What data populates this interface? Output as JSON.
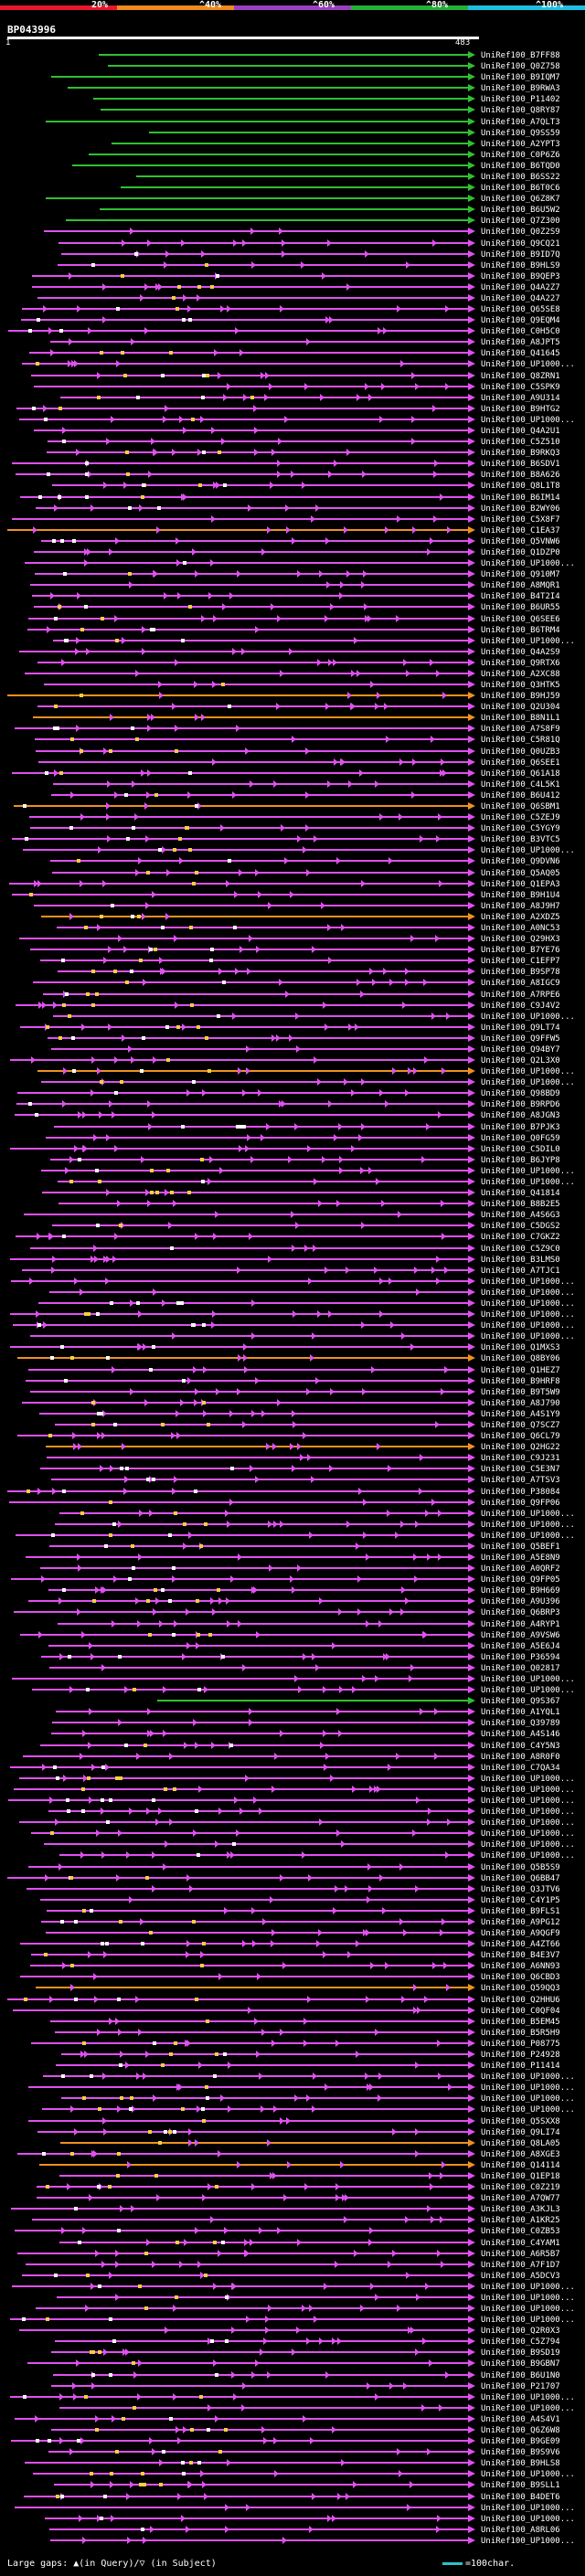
{
  "query": {
    "name": "BP043996",
    "start": "1",
    "end": "483"
  },
  "legend": {
    "ticks": [
      "20%",
      "^40%",
      "^60%",
      "^80%",
      "^100%"
    ],
    "colors": [
      "#e8172b",
      "#f08a1e",
      "#9b3fc0",
      "#23b038",
      "#1ec0e0"
    ]
  },
  "colors": {
    "magenta": "#e050f0",
    "green": "#30c030",
    "orange": "#f09020",
    "white": "#ffffff",
    "yellow": "#f0d040"
  },
  "hits": [
    {
      "label": "UniRef100_B7FF88",
      "color": "green"
    },
    {
      "label": "UniRef100_Q0Z758",
      "color": "green"
    },
    {
      "label": "UniRef100_B9IQM7",
      "color": "green"
    },
    {
      "label": "UniRef100_B9RWA3",
      "color": "green"
    },
    {
      "label": "UniRef100_P11402",
      "color": "green"
    },
    {
      "label": "UniRef100_Q8RY87",
      "color": "green"
    },
    {
      "label": "UniRef100_A7QLT3",
      "color": "green"
    },
    {
      "label": "UniRef100_Q9SS59",
      "color": "green"
    },
    {
      "label": "UniRef100_A2YPT3",
      "color": "green"
    },
    {
      "label": "UniRef100_C0P6Z6",
      "color": "green"
    },
    {
      "label": "UniRef100_B6TQD0",
      "color": "green"
    },
    {
      "label": "UniRef100_B6SS22",
      "color": "green"
    },
    {
      "label": "UniRef100_B6T0C6",
      "color": "green"
    },
    {
      "label": "UniRef100_Q6Z8K7",
      "color": "green"
    },
    {
      "label": "UniRef100_B6U5W2",
      "color": "green"
    },
    {
      "label": "UniRef100_Q7Z300",
      "color": "green"
    },
    {
      "label": "UniRef100_Q0Z2S9",
      "color": "magenta"
    },
    {
      "label": "UniRef100_Q9CQ21",
      "color": "magenta"
    },
    {
      "label": "UniRef100_B9ID7Q",
      "color": "magenta"
    },
    {
      "label": "UniRef100_B9HLS9",
      "color": "magenta"
    },
    {
      "label": "UniRef100_B9QEP3",
      "color": "magenta"
    },
    {
      "label": "UniRef100_Q4A2Z7",
      "color": "magenta"
    },
    {
      "label": "UniRef100_Q4A227",
      "color": "magenta"
    },
    {
      "label": "UniRef100_Q65SE8",
      "color": "magenta"
    },
    {
      "label": "UniRef100_Q9EQM4",
      "color": "magenta"
    },
    {
      "label": "UniRef100_C0H5C0",
      "color": "magenta"
    },
    {
      "label": "UniRef100_A8JPT5",
      "color": "magenta"
    },
    {
      "label": "UniRef100_Q41645",
      "color": "magenta"
    },
    {
      "label": "UniRef100_UP1000...",
      "color": "magenta"
    },
    {
      "label": "UniRef100_Q8ZRN1",
      "color": "magenta"
    },
    {
      "label": "UniRef100_C5SPK9",
      "color": "magenta"
    },
    {
      "label": "UniRef100_A9U314",
      "color": "magenta"
    },
    {
      "label": "UniRef100_B9HTG2",
      "color": "magenta"
    },
    {
      "label": "UniRef100_UP1000...",
      "color": "magenta"
    },
    {
      "label": "UniRef100_Q4A2U1",
      "color": "magenta"
    },
    {
      "label": "UniRef100_C5Z510",
      "color": "magenta"
    },
    {
      "label": "UniRef100_B9RKQ3",
      "color": "magenta"
    },
    {
      "label": "UniRef100_B6SDV1",
      "color": "magenta"
    },
    {
      "label": "UniRef100_B8A626",
      "color": "magenta"
    },
    {
      "label": "UniRef100_Q8L1T8",
      "color": "magenta"
    },
    {
      "label": "UniRef100_B6IM14",
      "color": "magenta"
    },
    {
      "label": "UniRef100_B2WY06",
      "color": "magenta"
    },
    {
      "label": "UniRef100_C5X8F7",
      "color": "magenta"
    },
    {
      "label": "UniRef100_C1EA37",
      "color": "orange"
    },
    {
      "label": "UniRef100_Q5VNW6",
      "color": "magenta"
    },
    {
      "label": "UniRef100_Q1DZP0",
      "color": "magenta"
    },
    {
      "label": "UniRef100_UP1000...",
      "color": "magenta"
    },
    {
      "label": "UniRef100_Q910M7",
      "color": "magenta"
    },
    {
      "label": "UniRef100_A8MQR1",
      "color": "magenta"
    },
    {
      "label": "UniRef100_B4T2I4",
      "color": "magenta"
    },
    {
      "label": "UniRef100_B6UR55",
      "color": "magenta"
    },
    {
      "label": "UniRef100_Q6SEE6",
      "color": "magenta"
    },
    {
      "label": "UniRef100_B6TRM4",
      "color": "magenta"
    },
    {
      "label": "UniRef100_UP1000...",
      "color": "magenta"
    },
    {
      "label": "UniRef100_Q4A2S9",
      "color": "magenta"
    },
    {
      "label": "UniRef100_Q9RTX6",
      "color": "magenta"
    },
    {
      "label": "UniRef100_A2XC88",
      "color": "magenta"
    },
    {
      "label": "UniRef100_Q3HTK5",
      "color": "magenta"
    },
    {
      "label": "UniRef100_B9HJ59",
      "color": "orange"
    },
    {
      "label": "UniRef100_Q2U304",
      "color": "magenta"
    },
    {
      "label": "UniRef100_B8N1L1",
      "color": "orange"
    },
    {
      "label": "UniRef100_A7S8F9",
      "color": "magenta"
    },
    {
      "label": "UniRef100_C5R81Q",
      "color": "magenta"
    },
    {
      "label": "UniRef100_Q0UZB3",
      "color": "magenta"
    },
    {
      "label": "UniRef100_Q6SEE1",
      "color": "magenta"
    },
    {
      "label": "UniRef100_Q61A18",
      "color": "magenta"
    },
    {
      "label": "UniRef100_C4L5K1",
      "color": "magenta"
    },
    {
      "label": "UniRef100_B6U412",
      "color": "magenta"
    },
    {
      "label": "UniRef100_Q6SBM1",
      "color": "orange"
    },
    {
      "label": "UniRef100_C5ZEJ9",
      "color": "magenta"
    },
    {
      "label": "UniRef100_C5YGY9",
      "color": "magenta"
    },
    {
      "label": "UniRef100_B3VTC5",
      "color": "magenta"
    },
    {
      "label": "UniRef100_UP1000...",
      "color": "magenta"
    },
    {
      "label": "UniRef100_Q9DVN6",
      "color": "magenta"
    },
    {
      "label": "UniRef100_Q5AQ05",
      "color": "magenta"
    },
    {
      "label": "UniRef100_Q1EPA3",
      "color": "magenta"
    },
    {
      "label": "UniRef100_B9H1U4",
      "color": "magenta"
    },
    {
      "label": "UniRef100_A8J9H7",
      "color": "magenta"
    },
    {
      "label": "UniRef100_A2XDZ5",
      "color": "orange"
    },
    {
      "label": "UniRef100_A0NC53",
      "color": "magenta"
    },
    {
      "label": "UniRef100_Q29HX3",
      "color": "magenta"
    },
    {
      "label": "UniRef100_B7YE76",
      "color": "magenta"
    },
    {
      "label": "UniRef100_C1EFP7",
      "color": "magenta"
    },
    {
      "label": "UniRef100_B9SP78",
      "color": "magenta"
    },
    {
      "label": "UniRef100_A8IGC9",
      "color": "magenta"
    },
    {
      "label": "UniRef100_A7RPE6",
      "color": "magenta"
    },
    {
      "label": "UniRef100_C9J4V2",
      "color": "magenta"
    },
    {
      "label": "UniRef100_UP1000...",
      "color": "magenta"
    },
    {
      "label": "UniRef100_Q9LT74",
      "color": "magenta"
    },
    {
      "label": "UniRef100_Q9FFW5",
      "color": "magenta"
    },
    {
      "label": "UniRef100_Q94BY7",
      "color": "magenta"
    },
    {
      "label": "UniRef100_Q2L3X0",
      "color": "magenta"
    },
    {
      "label": "UniRef100_UP1000...",
      "color": "orange"
    },
    {
      "label": "UniRef100_UP1000...",
      "color": "magenta"
    },
    {
      "label": "UniRef100_Q98BD9",
      "color": "magenta"
    },
    {
      "label": "UniRef100_B9RPD6",
      "color": "magenta"
    },
    {
      "label": "UniRef100_A8JGN3",
      "color": "magenta"
    },
    {
      "label": "UniRef100_B7PJK3",
      "color": "magenta"
    },
    {
      "label": "UniRef100_Q0FG59",
      "color": "magenta"
    },
    {
      "label": "UniRef100_C5DIL0",
      "color": "magenta"
    },
    {
      "label": "UniRef100_B6JYP8",
      "color": "magenta"
    },
    {
      "label": "UniRef100_UP1000...",
      "color": "magenta"
    },
    {
      "label": "UniRef100_UP1000...",
      "color": "magenta"
    },
    {
      "label": "UniRef100_Q41814",
      "color": "magenta"
    },
    {
      "label": "UniRef100_B8B2E5",
      "color": "magenta"
    },
    {
      "label": "UniRef100_A4S6G3",
      "color": "magenta"
    },
    {
      "label": "UniRef100_C5DGS2",
      "color": "magenta"
    },
    {
      "label": "UniRef100_C7GKZ2",
      "color": "magenta"
    },
    {
      "label": "UniRef100_C5Z9C0",
      "color": "magenta"
    },
    {
      "label": "UniRef100_B3LMS0",
      "color": "magenta"
    },
    {
      "label": "UniRef100_A7TJC1",
      "color": "magenta"
    },
    {
      "label": "UniRef100_UP1000...",
      "color": "magenta"
    },
    {
      "label": "UniRef100_UP1000...",
      "color": "magenta"
    },
    {
      "label": "UniRef100_UP1000...",
      "color": "magenta"
    },
    {
      "label": "UniRef100_UP1000...",
      "color": "magenta"
    },
    {
      "label": "UniRef100_UP1000...",
      "color": "magenta"
    },
    {
      "label": "UniRef100_UP1000...",
      "color": "magenta"
    },
    {
      "label": "UniRef100_Q1MXS3",
      "color": "magenta"
    },
    {
      "label": "UniRef100_Q8BY06",
      "color": "orange"
    },
    {
      "label": "UniRef100_Q1HEZ7",
      "color": "magenta"
    },
    {
      "label": "UniRef100_B9HRF8",
      "color": "magenta"
    },
    {
      "label": "UniRef100_B9T5W9",
      "color": "magenta"
    },
    {
      "label": "UniRef100_A8J790",
      "color": "magenta"
    },
    {
      "label": "UniRef100_A4S1Y9",
      "color": "magenta"
    },
    {
      "label": "UniRef100_Q7SCZ7",
      "color": "magenta"
    },
    {
      "label": "UniRef100_Q6CL79",
      "color": "magenta"
    },
    {
      "label": "UniRef100_Q2HG22",
      "color": "orange"
    },
    {
      "label": "UniRef100_C9J231",
      "color": "magenta"
    },
    {
      "label": "UniRef100_C5E3N7",
      "color": "magenta"
    },
    {
      "label": "UniRef100_A7TSV3",
      "color": "magenta"
    },
    {
      "label": "UniRef100_P38084",
      "color": "magenta"
    },
    {
      "label": "UniRef100_Q9FP06",
      "color": "magenta"
    },
    {
      "label": "UniRef100_UP1000...",
      "color": "magenta"
    },
    {
      "label": "UniRef100_UP1000...",
      "color": "magenta"
    },
    {
      "label": "UniRef100_UP1000...",
      "color": "magenta"
    },
    {
      "label": "UniRef100_Q5BEF1",
      "color": "magenta"
    },
    {
      "label": "UniRef100_A5E8N9",
      "color": "magenta"
    },
    {
      "label": "UniRef100_A0QRF2",
      "color": "magenta"
    },
    {
      "label": "UniRef100_Q9FP05",
      "color": "magenta"
    },
    {
      "label": "UniRef100_B9H669",
      "color": "magenta"
    },
    {
      "label": "UniRef100_A9U396",
      "color": "magenta"
    },
    {
      "label": "UniRef100_Q6BRP3",
      "color": "magenta"
    },
    {
      "label": "UniRef100_A4RYP1",
      "color": "magenta"
    },
    {
      "label": "UniRef100_A9VSW6",
      "color": "magenta"
    },
    {
      "label": "UniRef100_A5E6J4",
      "color": "magenta"
    },
    {
      "label": "UniRef100_P36594",
      "color": "magenta"
    },
    {
      "label": "UniRef100_Q02817",
      "color": "magenta"
    },
    {
      "label": "UniRef100_UP1000...",
      "color": "magenta"
    },
    {
      "label": "UniRef100_UP1000...",
      "color": "magenta"
    },
    {
      "label": "UniRef100_Q9S367",
      "color": "green"
    },
    {
      "label": "UniRef100_A1YQL1",
      "color": "magenta"
    },
    {
      "label": "UniRef100_Q39789",
      "color": "magenta"
    },
    {
      "label": "UniRef100_A4S146",
      "color": "magenta"
    },
    {
      "label": "UniRef100_C4Y5N3",
      "color": "magenta"
    },
    {
      "label": "UniRef100_A8R0F0",
      "color": "magenta"
    },
    {
      "label": "UniRef100_C7QA34",
      "color": "magenta"
    },
    {
      "label": "UniRef100_UP1000...",
      "color": "magenta"
    },
    {
      "label": "UniRef100_UP1000...",
      "color": "magenta"
    },
    {
      "label": "UniRef100_UP1000...",
      "color": "magenta"
    },
    {
      "label": "UniRef100_UP1000...",
      "color": "magenta"
    },
    {
      "label": "UniRef100_UP1000...",
      "color": "magenta"
    },
    {
      "label": "UniRef100_UP1000...",
      "color": "magenta"
    },
    {
      "label": "UniRef100_UP1000...",
      "color": "magenta"
    },
    {
      "label": "UniRef100_UP1000...",
      "color": "magenta"
    },
    {
      "label": "UniRef100_Q5B5S9",
      "color": "magenta"
    },
    {
      "label": "UniRef100_Q6BB47",
      "color": "magenta"
    },
    {
      "label": "UniRef100_Q3JTV6",
      "color": "magenta"
    },
    {
      "label": "UniRef100_C4Y1P5",
      "color": "magenta"
    },
    {
      "label": "UniRef100_B9FLS1",
      "color": "magenta"
    },
    {
      "label": "UniRef100_A9PG12",
      "color": "magenta"
    },
    {
      "label": "UniRef100_A9QGF9",
      "color": "magenta"
    },
    {
      "label": "UniRef100_A4ZT66",
      "color": "magenta"
    },
    {
      "label": "UniRef100_B4E3V7",
      "color": "magenta"
    },
    {
      "label": "UniRef100_A6NN93",
      "color": "magenta"
    },
    {
      "label": "UniRef100_Q6CBD3",
      "color": "magenta"
    },
    {
      "label": "UniRef100_Q59QQ3",
      "color": "orange"
    },
    {
      "label": "UniRef100_Q2HHU6",
      "color": "magenta"
    },
    {
      "label": "UniRef100_C0QF04",
      "color": "magenta"
    },
    {
      "label": "UniRef100_B5EM45",
      "color": "magenta"
    },
    {
      "label": "UniRef100_B5R5H9",
      "color": "magenta"
    },
    {
      "label": "UniRef100_P08775",
      "color": "magenta"
    },
    {
      "label": "UniRef100_P24928",
      "color": "magenta"
    },
    {
      "label": "UniRef100_P11414",
      "color": "magenta"
    },
    {
      "label": "UniRef100_UP1000...",
      "color": "magenta"
    },
    {
      "label": "UniRef100_UP1000...",
      "color": "magenta"
    },
    {
      "label": "UniRef100_UP1000...",
      "color": "magenta"
    },
    {
      "label": "UniRef100_UP1000...",
      "color": "magenta"
    },
    {
      "label": "UniRef100_Q5SXX8",
      "color": "magenta"
    },
    {
      "label": "UniRef100_Q9LI74",
      "color": "magenta"
    },
    {
      "label": "UniRef100_Q8LA05",
      "color": "orange"
    },
    {
      "label": "UniRef100_A8XGE3",
      "color": "magenta"
    },
    {
      "label": "UniRef100_Q14114",
      "color": "orange"
    },
    {
      "label": "UniRef100_Q1EP18",
      "color": "magenta"
    },
    {
      "label": "UniRef100_C0Z219",
      "color": "magenta"
    },
    {
      "label": "UniRef100_A7QW77",
      "color": "magenta"
    },
    {
      "label": "UniRef100_A3KJL3",
      "color": "magenta"
    },
    {
      "label": "UniRef100_A1KR25",
      "color": "magenta"
    },
    {
      "label": "UniRef100_C0ZB53",
      "color": "magenta"
    },
    {
      "label": "UniRef100_C4YAM1",
      "color": "magenta"
    },
    {
      "label": "UniRef100_A6R5B7",
      "color": "magenta"
    },
    {
      "label": "UniRef100_A7F1D7",
      "color": "magenta"
    },
    {
      "label": "UniRef100_A5DCV3",
      "color": "magenta"
    },
    {
      "label": "UniRef100_UP1000...",
      "color": "magenta"
    },
    {
      "label": "UniRef100_UP1000...",
      "color": "magenta"
    },
    {
      "label": "UniRef100_UP1000...",
      "color": "magenta"
    },
    {
      "label": "UniRef100_UP1000...",
      "color": "magenta"
    },
    {
      "label": "UniRef100_Q2R0X3",
      "color": "magenta"
    },
    {
      "label": "UniRef100_C5Z794",
      "color": "magenta"
    },
    {
      "label": "UniRef100_B9SD19",
      "color": "magenta"
    },
    {
      "label": "UniRef100_B9GBN7",
      "color": "magenta"
    },
    {
      "label": "UniRef100_B6U1N0",
      "color": "magenta"
    },
    {
      "label": "UniRef100_P21707",
      "color": "magenta"
    },
    {
      "label": "UniRef100_UP1000...",
      "color": "magenta"
    },
    {
      "label": "UniRef100_UP1000...",
      "color": "magenta"
    },
    {
      "label": "UniRef100_A4S4V1",
      "color": "magenta"
    },
    {
      "label": "UniRef100_Q6Z6W8",
      "color": "magenta"
    },
    {
      "label": "UniRef100_B9GE09",
      "color": "magenta"
    },
    {
      "label": "UniRef100_B9S9V6",
      "color": "magenta"
    },
    {
      "label": "UniRef100_B9HLS8",
      "color": "magenta"
    },
    {
      "label": "UniRef100_UP1000...",
      "color": "magenta"
    },
    {
      "label": "UniRef100_B9SLL1",
      "color": "magenta"
    },
    {
      "label": "UniRef100_B4DET6",
      "color": "magenta"
    },
    {
      "label": "UniRef100_UP1000...",
      "color": "magenta"
    },
    {
      "label": "UniRef100_UP1000...",
      "color": "magenta"
    },
    {
      "label": "UniRef100_A8RL06",
      "color": "magenta"
    },
    {
      "label": "UniRef100_UP1000...",
      "color": "magenta"
    }
  ],
  "footer": {
    "gaps_text": "Large gaps: ▲(in Query)/▽ (in Subject)",
    "scale_text": "=100char."
  }
}
